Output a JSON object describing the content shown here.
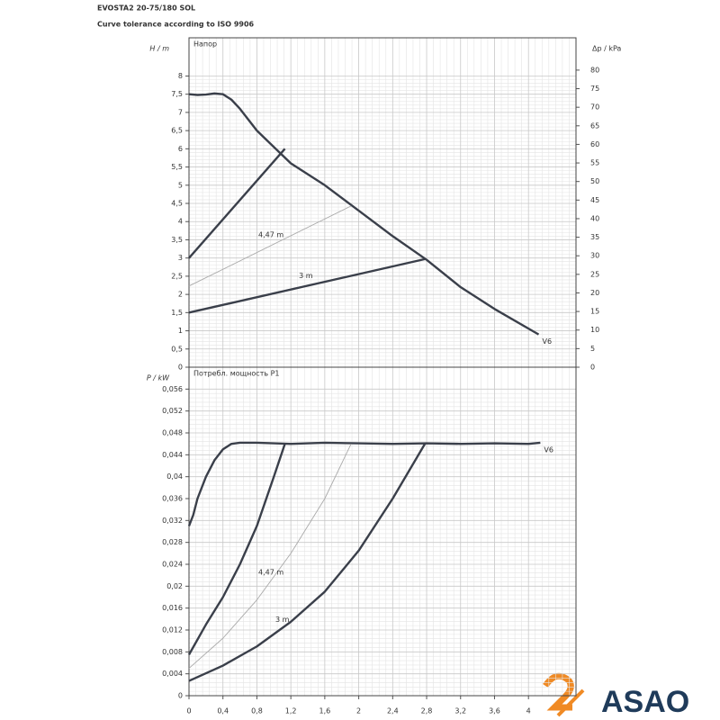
{
  "header": {
    "title": "EVOSTA2 20-75/180 SOL",
    "subtitle": "Curve tolerance according to ISO 9906"
  },
  "logo": "ASAO",
  "chart_data": [
    {
      "type": "line",
      "title": "Напор",
      "y_label": "H / m",
      "y2_label": "Δp / kPa",
      "xlim": [
        0,
        4.56
      ],
      "ylim": [
        0,
        9.05
      ],
      "y2lim": [
        0,
        88.7
      ],
      "grid": true,
      "yticks": [
        0,
        {
          "value": 0.5,
          "label": "0,5"
        },
        1,
        {
          "value": 1.5,
          "label": "1,5"
        },
        2,
        {
          "value": 2.5,
          "label": "2,5"
        },
        3,
        {
          "value": 3.5,
          "label": "3,5"
        },
        4,
        {
          "value": 4.5,
          "label": "4,5"
        },
        5,
        {
          "value": 5.5,
          "label": "5,5"
        },
        6,
        {
          "value": 6.5,
          "label": "6,5"
        },
        7,
        {
          "value": 7.5,
          "label": "7,5"
        },
        8
      ],
      "y2ticks": [
        0,
        5,
        10,
        15,
        20,
        25,
        30,
        35,
        40,
        45,
        50,
        55,
        60,
        65,
        70,
        75,
        80
      ],
      "series": [
        {
          "name": "V6",
          "color": "#3a3f4a",
          "x": [
            0,
            0.1,
            0.2,
            0.3,
            0.4,
            0.5,
            0.6,
            0.8,
            1.0,
            1.2,
            1.6,
            2.0,
            2.4,
            2.8,
            3.2,
            3.6,
            4.12
          ],
          "values": [
            7.5,
            7.48,
            7.49,
            7.52,
            7.5,
            7.35,
            7.1,
            6.5,
            6.05,
            5.6,
            5.0,
            4.3,
            3.6,
            2.95,
            2.2,
            1.6,
            0.9
          ]
        },
        {
          "color": "#3a3f4a",
          "x": [
            0,
            1.13
          ],
          "values": [
            3.0,
            6.0
          ]
        },
        {
          "name": "4,47 m",
          "color": "#aaaaaa",
          "x": [
            0,
            1.91
          ],
          "values": [
            2.23,
            4.43
          ]
        },
        {
          "name": "3 m",
          "color": "#3a3f4a",
          "x": [
            0,
            2.78
          ],
          "values": [
            1.5,
            2.97
          ]
        }
      ]
    },
    {
      "type": "line",
      "title": "Потребл. мощность P1",
      "y_label": "P / kW",
      "xlim": [
        0,
        4.56
      ],
      "ylim": [
        0,
        0.06
      ],
      "grid": true,
      "xticks": [
        0,
        {
          "value": 0.4,
          "label": "0,4"
        },
        {
          "value": 0.8,
          "label": "0,8"
        },
        {
          "value": 1.2,
          "label": "1,2"
        },
        {
          "value": 1.6,
          "label": "1,6"
        },
        2,
        {
          "value": 2.4,
          "label": "2,4"
        },
        {
          "value": 2.8,
          "label": "2,8"
        },
        {
          "value": 3.2,
          "label": "3,2"
        },
        {
          "value": 3.6,
          "label": "3,6"
        },
        4
      ],
      "yticks": [
        0,
        {
          "value": 0.004,
          "label": "0,004"
        },
        {
          "value": 0.008,
          "label": "0,008"
        },
        {
          "value": 0.012,
          "label": "0,012"
        },
        {
          "value": 0.016,
          "label": "0,016"
        },
        {
          "value": 0.02,
          "label": "0,02"
        },
        {
          "value": 0.024,
          "label": "0,024"
        },
        {
          "value": 0.028,
          "label": "0,028"
        },
        {
          "value": 0.032,
          "label": "0,032"
        },
        {
          "value": 0.036,
          "label": "0,036"
        },
        {
          "value": 0.04,
          "label": "0,04"
        },
        {
          "value": 0.044,
          "label": "0,044"
        },
        {
          "value": 0.048,
          "label": "0,048"
        },
        {
          "value": 0.052,
          "label": "0,052"
        },
        {
          "value": 0.056,
          "label": "0,056"
        }
      ],
      "series": [
        {
          "name": "V6",
          "color": "#3a3f4a",
          "x": [
            0,
            0.05,
            0.1,
            0.2,
            0.3,
            0.4,
            0.5,
            0.6,
            0.8,
            1.2,
            1.6,
            2.0,
            2.4,
            2.8,
            3.2,
            3.6,
            4.0,
            4.14
          ],
          "values": [
            0.031,
            0.033,
            0.036,
            0.04,
            0.043,
            0.045,
            0.046,
            0.0462,
            0.0462,
            0.046,
            0.0462,
            0.0461,
            0.046,
            0.0461,
            0.046,
            0.0461,
            0.046,
            0.0462
          ]
        },
        {
          "color": "#3a3f4a",
          "x": [
            0,
            0.2,
            0.4,
            0.6,
            0.8,
            1.0,
            1.13
          ],
          "values": [
            0.0075,
            0.013,
            0.018,
            0.024,
            0.031,
            0.04,
            0.046
          ]
        },
        {
          "name": "4,47 m",
          "color": "#aaaaaa",
          "x": [
            0,
            0.4,
            0.8,
            1.2,
            1.6,
            1.91
          ],
          "values": [
            0.005,
            0.0105,
            0.0175,
            0.026,
            0.036,
            0.046
          ]
        },
        {
          "name": "3 m",
          "color": "#3a3f4a",
          "x": [
            0,
            0.4,
            0.8,
            1.2,
            1.6,
            2.0,
            2.4,
            2.78
          ],
          "values": [
            0.0027,
            0.0055,
            0.009,
            0.0135,
            0.019,
            0.0265,
            0.036,
            0.046
          ]
        }
      ]
    }
  ]
}
